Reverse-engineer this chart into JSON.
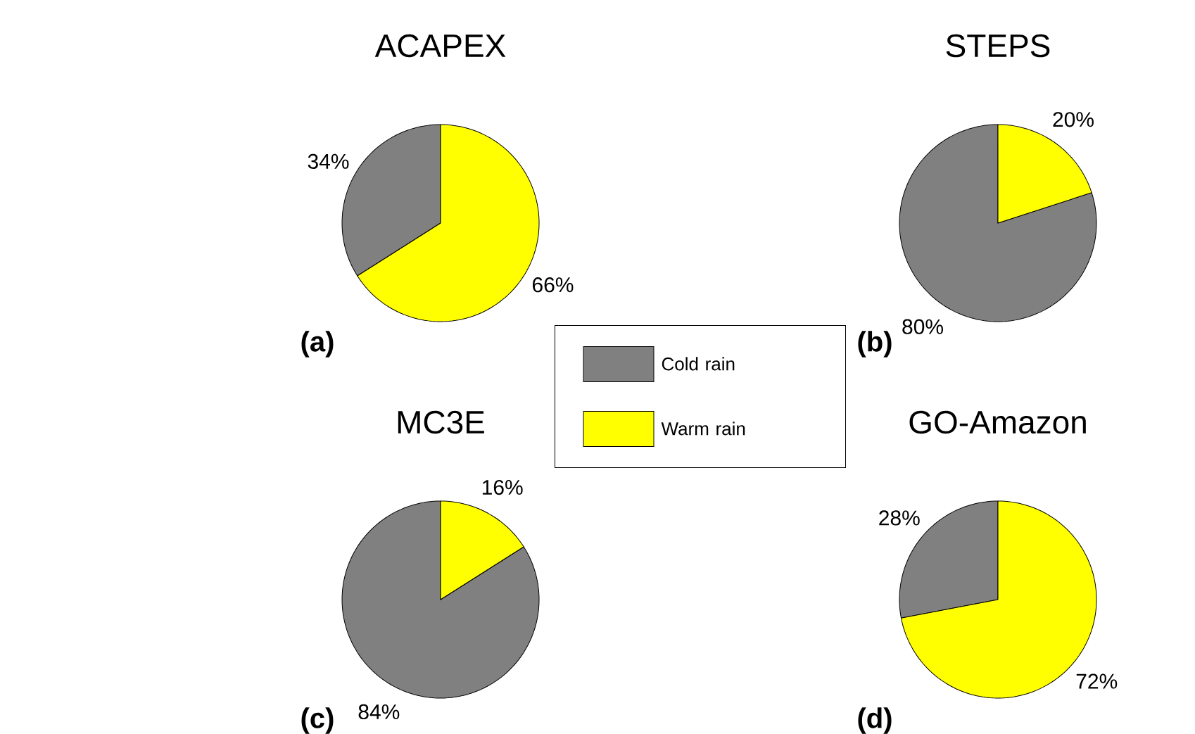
{
  "chart_data": [
    {
      "type": "pie",
      "title": "ACAPEX",
      "categories": [
        "Cold rain",
        "Warm rain"
      ],
      "values": [
        34,
        66
      ],
      "colors": [
        "#808080",
        "#ffff00"
      ],
      "value_labels": [
        "34%",
        "66%"
      ],
      "annotations": [
        "(a)"
      ],
      "legend": "bottom right"
    },
    {
      "type": "pie",
      "title": "STEPS",
      "categories": [
        null,
        null
      ],
      "values": [
        80,
        20
      ],
      "colors": [
        "#808080",
        "#ffff00"
      ],
      "value_labels": [
        "80%",
        "20%"
      ],
      "annotations": [
        "(b)"
      ]
    },
    {
      "type": "pie",
      "title": "MC3E",
      "categories": [
        null,
        null
      ],
      "values": [
        84,
        16
      ],
      "colors": [
        "#808080",
        "#ffff00"
      ],
      "value_labels": [
        "84%",
        "16%"
      ],
      "annotations": [
        "(c)"
      ]
    },
    {
      "type": "pie",
      "title": "GO-Amazon",
      "categories": [
        null,
        null
      ],
      "values": [
        28,
        72
      ],
      "colors": [
        "#808080",
        "#ffff00"
      ],
      "value_labels": [
        "28%",
        "72%"
      ],
      "annotations": [
        "(d)"
      ]
    }
  ]
}
